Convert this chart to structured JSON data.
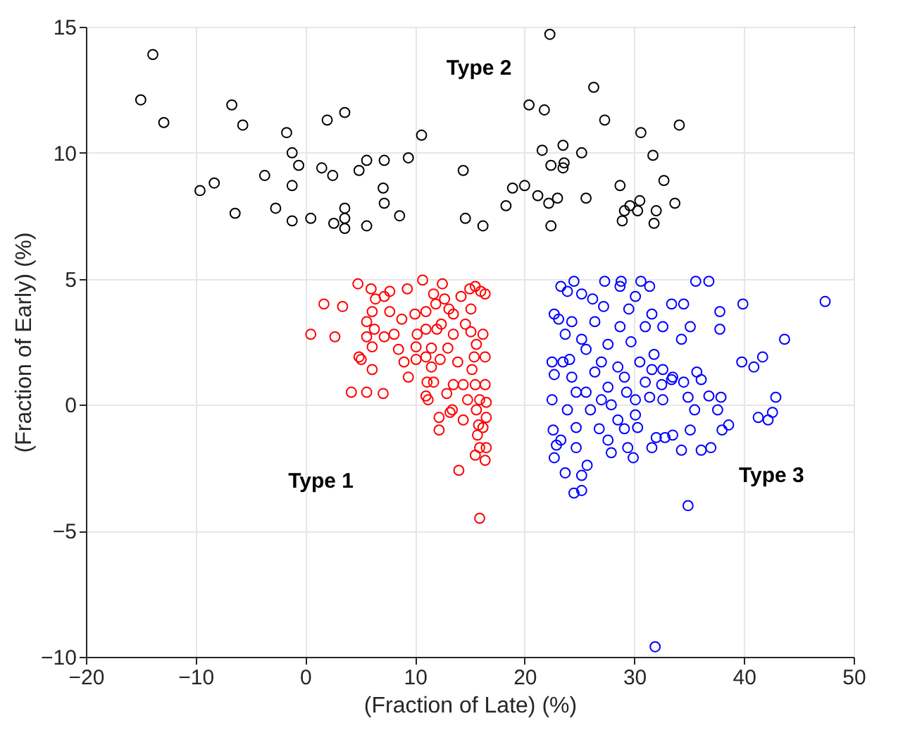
{
  "chart_data": {
    "type": "scatter",
    "xlabel": "(Fraction of Late) (%)",
    "ylabel": "(Fraction of Early) (%)",
    "xlim": [
      -20,
      50
    ],
    "xticks": [
      -20,
      -10,
      0,
      10,
      20,
      30,
      40,
      50
    ],
    "ylim": [
      -10,
      15
    ],
    "yticks": [
      -10,
      -5,
      0,
      5,
      10,
      15
    ],
    "grid": true,
    "legend": false,
    "marker": "circle",
    "annotations": [
      "Type 2",
      "Type 1",
      "Type 3"
    ],
    "series": [
      {
        "color": "#000000",
        "x": [
          -13.9,
          -15.0,
          -12.9,
          -6.7,
          -5.7,
          -1.7,
          -1.2,
          -0.6,
          2.0,
          3.6,
          10.6,
          9.4,
          7.2,
          5.6,
          4.9,
          1.5,
          2.5,
          -3.7,
          -8.3,
          -9.6,
          -1.2,
          7.1,
          7.2,
          -2.7,
          -6.4,
          -1.2,
          0.5,
          3.6,
          3.6,
          2.6,
          3.6,
          5.6,
          8.6,
          14.4,
          14.6,
          22.3,
          26.3,
          20.4,
          21.8,
          27.3,
          34.1,
          30.6,
          21.6,
          23.5,
          25.2,
          31.7,
          22.4,
          23.6,
          23.5,
          18.9,
          20.0,
          28.7,
          32.7,
          21.2,
          22.2,
          23.0,
          25.6,
          30.5,
          29.6,
          29.1,
          30.3,
          28.9,
          32.0,
          33.7,
          31.8,
          18.3,
          16.2,
          22.4
        ],
        "values": [
          13.9,
          12.1,
          11.2,
          11.9,
          11.1,
          10.8,
          10.0,
          9.5,
          11.3,
          11.6,
          10.7,
          9.8,
          9.7,
          9.7,
          9.3,
          9.4,
          9.1,
          9.1,
          8.8,
          8.5,
          8.7,
          8.6,
          8.0,
          7.8,
          7.6,
          7.3,
          7.4,
          7.8,
          7.4,
          7.2,
          7.0,
          7.1,
          7.5,
          9.3,
          7.4,
          14.7,
          12.6,
          11.9,
          11.7,
          11.3,
          11.1,
          10.8,
          10.1,
          10.3,
          10.0,
          9.9,
          9.5,
          9.6,
          9.4,
          8.6,
          8.7,
          8.7,
          8.9,
          8.3,
          8.0,
          8.2,
          8.2,
          8.1,
          7.9,
          7.7,
          7.7,
          7.3,
          7.7,
          8.0,
          7.2,
          7.9,
          7.1,
          7.1
        ]
      },
      {
        "color": "#ff0000",
        "x": [
          4.8,
          10.7,
          12.5,
          6.0,
          7.7,
          9.3,
          6.4,
          7.2,
          1.7,
          3.4,
          0.5,
          2.7,
          15.0,
          15.5,
          16.4,
          16.0,
          12.7,
          11.9,
          11.7,
          13.1,
          15.1,
          6.1,
          7.7,
          8.8,
          10.0,
          11.0,
          13.5,
          5.6,
          6.3,
          5.6,
          7.2,
          8.1,
          10.2,
          11.0,
          12.0,
          12.4,
          13.5,
          14.6,
          15.1,
          16.2,
          15.6,
          6.1,
          4.9,
          5.1,
          6.1,
          8.5,
          9.0,
          9.4,
          10.1,
          11.0,
          11.5,
          12.3,
          13.9,
          15.4,
          16.4,
          11.7,
          13.5,
          14.4,
          15.5,
          16.4,
          4.2,
          5.6,
          7.1,
          11.0,
          12.9,
          11.2,
          14.8,
          15.9,
          16.5,
          13.4,
          13.2,
          15.6,
          16.5,
          12.2,
          14.4,
          15.8,
          12.2,
          15.7,
          16.2,
          15.9,
          16.5,
          15.5,
          16.4,
          14.0,
          15.9,
          14.2,
          10.1,
          11.5,
          13.0,
          15.2,
          11.1
        ],
        "values": [
          4.8,
          4.95,
          4.8,
          4.6,
          4.5,
          4.6,
          4.2,
          4.3,
          4.0,
          3.9,
          2.8,
          2.7,
          4.6,
          4.7,
          4.4,
          4.5,
          4.2,
          4.0,
          4.4,
          3.8,
          3.8,
          3.7,
          3.7,
          3.4,
          3.6,
          3.7,
          3.6,
          3.3,
          3.0,
          2.7,
          2.7,
          2.8,
          2.8,
          3.0,
          3.0,
          3.2,
          2.8,
          3.2,
          2.9,
          2.8,
          2.4,
          2.3,
          1.9,
          1.8,
          1.4,
          2.2,
          1.7,
          1.1,
          1.8,
          1.9,
          1.5,
          1.8,
          1.7,
          1.9,
          1.9,
          0.9,
          0.8,
          0.8,
          0.8,
          0.8,
          0.5,
          0.5,
          0.45,
          0.35,
          0.45,
          0.2,
          0.2,
          0.2,
          0.1,
          -0.2,
          -0.3,
          -0.2,
          -0.5,
          -0.5,
          -0.6,
          -0.8,
          -1.0,
          -1.2,
          -0.9,
          -1.7,
          -1.7,
          -2.0,
          -2.2,
          -2.6,
          -4.5,
          4.3,
          2.3,
          2.25,
          2.25,
          1.4,
          0.9
        ]
      },
      {
        "color": "#0000ff",
        "x": [
          23.3,
          24.5,
          27.3,
          28.8,
          30.6,
          31.4,
          35.6,
          36.8,
          47.4,
          39.9,
          37.8,
          37.8,
          43.7,
          39.8,
          40.9,
          41.7,
          42.9,
          41.3,
          42.6,
          42.2,
          38.6,
          38.0,
          37.9,
          37.6,
          36.8,
          36.98,
          36.1,
          35.1,
          34.9,
          35.7,
          36.1,
          34.9,
          35.5,
          34.3,
          33.5,
          32.8,
          32.0,
          31.6,
          33.4,
          34.5,
          33.5,
          32.5,
          32.6,
          31.4,
          30.1,
          29.1,
          30.3,
          29.4,
          29.9,
          27.9,
          27.6,
          25.7,
          25.2,
          23.7,
          24.5,
          25.2,
          22.7,
          22.6,
          23.3,
          24.7,
          22.5,
          22.7,
          22.5,
          22.7,
          23.1,
          23.9,
          25.2,
          26.2,
          28.7,
          30.1,
          33.4,
          34.5,
          35.1,
          34.3,
          32.6,
          31.0,
          28.7,
          26.4,
          24.3,
          25.2,
          27.6,
          29.7,
          31.8,
          30.5,
          28.5,
          26.4,
          24.3,
          23.5,
          25.6,
          27.6,
          29.3,
          31.0,
          23.9,
          26.0,
          27.9,
          26.8,
          24.7,
          28.5,
          22.9,
          25.6,
          24.1,
          27.2,
          29.5,
          31.6,
          23.7,
          27.0,
          30.1,
          24.7,
          29.1,
          27.0,
          31.6,
          32.6,
          31.9
        ],
        "values": [
          4.7,
          4.9,
          4.9,
          4.9,
          4.9,
          4.7,
          4.9,
          4.9,
          4.1,
          4.0,
          3.7,
          3.0,
          2.6,
          1.7,
          1.5,
          1.9,
          0.3,
          -0.5,
          -0.3,
          -0.6,
          -0.8,
          -1.0,
          0.3,
          -0.2,
          0.35,
          -1.7,
          -1.8,
          -1.0,
          -4.0,
          1.3,
          1.0,
          0.3,
          -0.2,
          -1.8,
          -1.2,
          -1.3,
          -1.3,
          -1.7,
          1.0,
          0.9,
          1.1,
          0.8,
          0.2,
          0.3,
          -0.4,
          -0.95,
          -0.9,
          -1.7,
          -2.1,
          -1.9,
          -1.4,
          -2.4,
          -2.8,
          -2.7,
          -3.5,
          -3.4,
          -2.1,
          -1.0,
          -1.4,
          -1.7,
          0.2,
          1.2,
          1.7,
          3.6,
          3.4,
          4.5,
          4.4,
          4.2,
          4.7,
          4.3,
          4.0,
          4.0,
          3.1,
          2.6,
          3.1,
          3.1,
          3.1,
          3.3,
          3.3,
          2.6,
          2.4,
          2.5,
          2.0,
          1.7,
          1.5,
          1.3,
          1.1,
          1.7,
          0.5,
          0.7,
          0.5,
          0.9,
          -0.2,
          -0.2,
          0.0,
          -0.95,
          -0.9,
          -0.6,
          -1.6,
          2.2,
          1.8,
          3.9,
          3.8,
          3.6,
          2.8,
          0.2,
          0.2,
          0.5,
          1.1,
          1.7,
          1.4,
          1.4,
          -9.6
        ]
      }
    ]
  }
}
